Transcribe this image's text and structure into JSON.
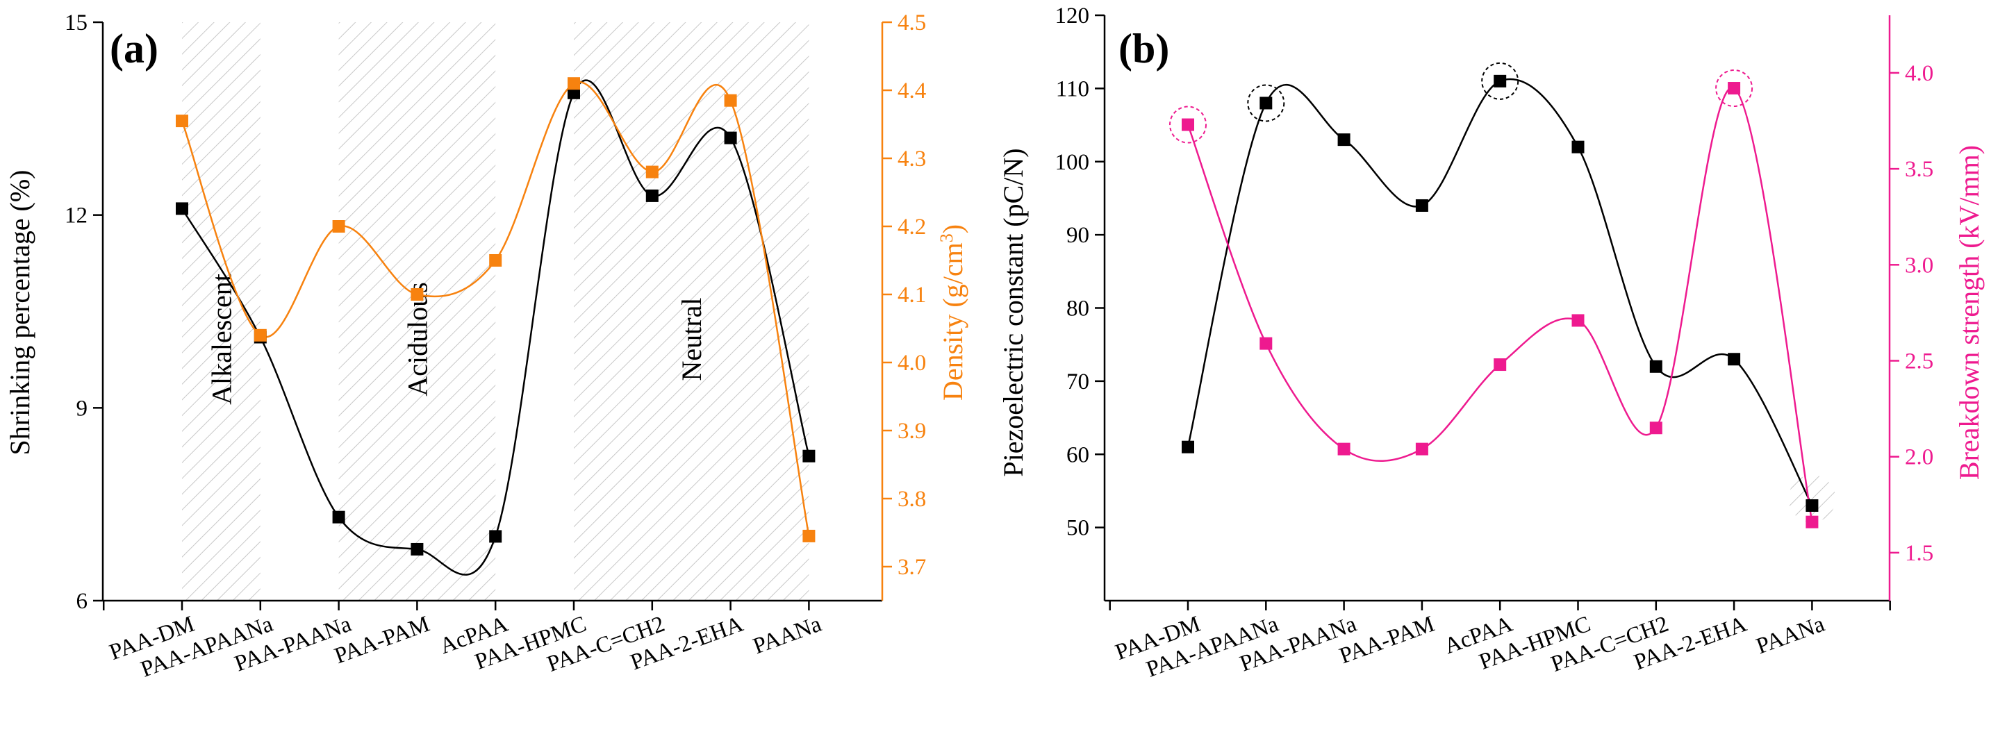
{
  "colors": {
    "black_series": "#000000",
    "orange_series": "#f7820f",
    "pink_series": "#ee1a8f",
    "hatch": "#c8c8c8"
  },
  "chart_data": [
    {
      "panel_label": "(a)",
      "type": "scatter",
      "categories": [
        "PAA-DM",
        "PAA-APAANa",
        "PAA-PAANa",
        "PAA-PAM",
        "AcPAA",
        "PAA-HPMC",
        "PAA-C=CH2",
        "PAA-2-EHA",
        "PAANa"
      ],
      "ylabel": "Shrinking percentage (%)",
      "y2label_main": "Density (g/cm",
      "y2label_sup": "3",
      "y2label_close": ")",
      "ylim": [
        6,
        15
      ],
      "yticks": [
        6,
        9,
        12,
        15
      ],
      "y2lim": [
        3.65,
        4.5
      ],
      "y2ticks": [
        3.7,
        3.8,
        3.9,
        4.0,
        4.1,
        4.2,
        4.3,
        4.4,
        4.5
      ],
      "y2ticklabels": [
        "3.7",
        "3.8",
        "3.9",
        "4.0",
        "4.1",
        "4.2",
        "4.3",
        "4.4",
        "4.5"
      ],
      "regions": [
        {
          "label": "Alkalescent",
          "from": 0,
          "to": 1
        },
        {
          "label": "Acidulous",
          "from": 2,
          "to": 4
        },
        {
          "label": "Neutral",
          "from": 5,
          "to": 8
        }
      ],
      "series": [
        {
          "axis": "left",
          "color": "#000000",
          "fit_curve": true,
          "values": [
            12.1,
            10.1,
            7.3,
            6.8,
            7.0,
            13.9,
            12.3,
            13.2,
            8.25
          ]
        },
        {
          "axis": "right",
          "color": "#f7820f",
          "fit_curve": true,
          "values": [
            4.355,
            4.04,
            4.2,
            4.1,
            4.15,
            4.41,
            4.28,
            4.385,
            3.745
          ]
        }
      ]
    },
    {
      "panel_label": "(b)",
      "type": "scatter",
      "categories": [
        "PAA-DM",
        "PAA-APAANa",
        "PAA-PAANa",
        "PAA-PAM",
        "AcPAA",
        "PAA-HPMC",
        "PAA-C=CH2",
        "PAA-2-EHA",
        "PAANa"
      ],
      "ylabel": "Piezoelectric constant (pC/N)",
      "y2label": "Breakdown strength (kV/mm)",
      "ylim": [
        40,
        120
      ],
      "yticks": [
        50,
        60,
        70,
        80,
        90,
        100,
        110,
        120
      ],
      "y2lim": [
        1.25,
        4.3
      ],
      "y2ticks": [
        1.5,
        2.0,
        2.5,
        3.0,
        3.5,
        4.0
      ],
      "y2ticklabels": [
        "1.5",
        "2.0",
        "2.5",
        "3.0",
        "3.5",
        "4.0"
      ],
      "series": [
        {
          "axis": "left",
          "color": "#000000",
          "fit_curve": true,
          "values": [
            61,
            108,
            103,
            94,
            111,
            102,
            72,
            73,
            53
          ],
          "highlighted_indices": [
            1,
            4
          ]
        },
        {
          "axis": "right",
          "color": "#ee1a8f",
          "fit_curve": true,
          "values": [
            3.73,
            2.59,
            2.04,
            2.04,
            2.48,
            2.71,
            2.15,
            3.92,
            1.66
          ],
          "highlighted_indices": [
            0,
            7
          ]
        }
      ],
      "hatched_index": 8
    }
  ]
}
